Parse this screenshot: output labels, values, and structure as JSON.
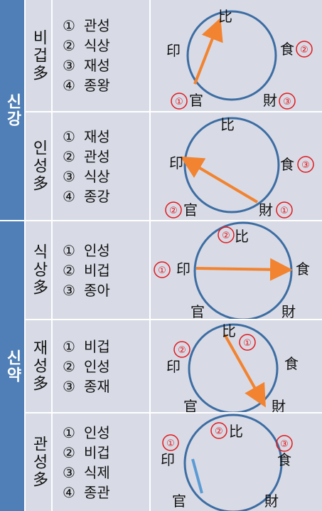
{
  "groups": {
    "strong": {
      "label": "신강"
    },
    "weak": {
      "label": "신약"
    }
  },
  "labels": {
    "bi": "比",
    "sik": "食",
    "jae": "財",
    "gwan": "官",
    "in": "印"
  },
  "colors": {
    "group_bg": "#4f7fb6",
    "cell_bg": "#d8dbe5",
    "circle": "#3d6da3",
    "arrow": "#f28330",
    "number": "#e3181d",
    "line": "#5b9bd5"
  },
  "rows": [
    {
      "name": "비겁多",
      "list": [
        {
          "n": "①",
          "t": "관성"
        },
        {
          "n": "②",
          "t": "식상"
        },
        {
          "n": "③",
          "t": "재성"
        },
        {
          "n": "④",
          "t": "종왕"
        }
      ]
    },
    {
      "name": "인성多",
      "list": [
        {
          "n": "①",
          "t": "재성"
        },
        {
          "n": "②",
          "t": "관성"
        },
        {
          "n": "③",
          "t": "식상"
        },
        {
          "n": "④",
          "t": "종강"
        }
      ]
    },
    {
      "name": "식상多",
      "list": [
        {
          "n": "①",
          "t": "인성"
        },
        {
          "n": "②",
          "t": "비겁"
        },
        {
          "n": "③",
          "t": "종아"
        }
      ]
    },
    {
      "name": "재성多",
      "list": [
        {
          "n": "①",
          "t": "비겁"
        },
        {
          "n": "②",
          "t": "인성"
        },
        {
          "n": "③",
          "t": "종재"
        }
      ]
    },
    {
      "name": "관성多",
      "list": [
        {
          "n": "①",
          "t": "인성"
        },
        {
          "n": "②",
          "t": "비겁"
        },
        {
          "n": "③",
          "t": "식제"
        },
        {
          "n": "④",
          "t": "종관"
        }
      ]
    }
  ],
  "diagram_marks": [
    {
      "r1": "②",
      "r2": "③",
      "r3": "①"
    },
    {
      "r1": "③",
      "r2": "①",
      "r3": "②"
    },
    {
      "r1": "②",
      "r2": "①"
    },
    {
      "r1": "①",
      "r2": "②"
    },
    {
      "r1": "②",
      "r2": "③",
      "r3": "①"
    }
  ]
}
